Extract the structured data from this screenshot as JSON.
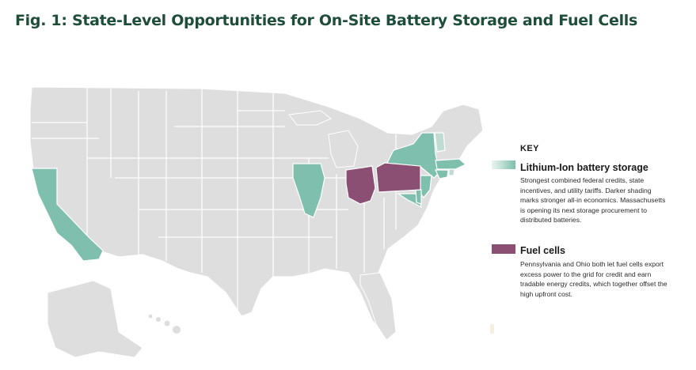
{
  "title": "Fig. 1: State-Level Opportunities for On-Site Battery Storage and Fuel Cells",
  "colors": {
    "base_state": "#dedede",
    "border": "#ffffff",
    "battery_dark": "#7fbfad",
    "battery_light": "#bfdcd2",
    "fuel_cell": "#8a4f72",
    "title": "#1e4d3a"
  },
  "highlighted_states": {
    "lithium_ion_battery_storage": [
      "California",
      "Illinois",
      "New York",
      "Massachusetts",
      "Connecticut",
      "Rhode Island",
      "New Jersey",
      "Maryland",
      "Delaware",
      "Vermont"
    ],
    "fuel_cells": [
      "Pennsylvania",
      "Ohio"
    ]
  },
  "key": {
    "heading": "KEY",
    "battery": {
      "title": "Lithium-Ion battery storage",
      "lines": [
        "Strongest combined federal credits, state",
        "incentives, and utility tariffs. Darker shading",
        "marks stronger all-in economics. Massachusetts",
        "is opening its next storage procurement to",
        "distributed batteries."
      ]
    },
    "fuel": {
      "title": "Fuel cells",
      "lines": [
        "Pennsylvania and Ohio both let fuel cells export",
        "excess power to the grid for credit and earn",
        "tradable energy credits, which together offset the",
        "high upfront cost."
      ]
    }
  }
}
